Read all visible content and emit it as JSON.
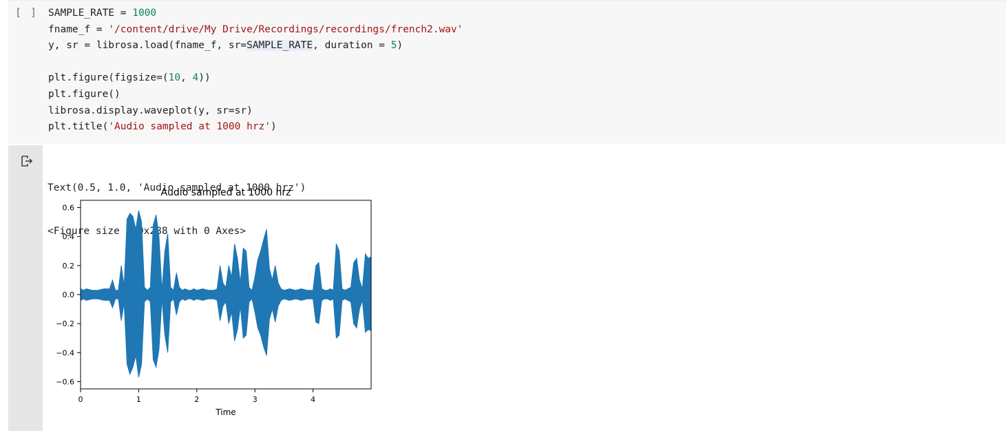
{
  "code_cell": {
    "run_indicator": "[ ]",
    "lines": [
      [
        {
          "t": "SAMPLE_RATE = "
        },
        {
          "t": "1000",
          "c": "num"
        }
      ],
      [
        {
          "t": "fname_f = "
        },
        {
          "t": "'/content/drive/My Drive/Recordings/recordings/french2.wav'",
          "c": "str"
        }
      ],
      [
        {
          "t": "y, sr = librosa.load(fname_f, sr="
        },
        {
          "t": "SAMPLE_RATE",
          "c": "hl"
        },
        {
          "t": ", duration = "
        },
        {
          "t": "5",
          "c": "num"
        },
        {
          "t": ")"
        }
      ],
      [
        {
          "t": ""
        }
      ],
      [
        {
          "t": "plt.figure(figsize=("
        },
        {
          "t": "10",
          "c": "num"
        },
        {
          "t": ", "
        },
        {
          "t": "4",
          "c": "num"
        },
        {
          "t": "))"
        }
      ],
      [
        {
          "t": "plt.figure()"
        }
      ],
      [
        {
          "t": "librosa.display.waveplot(y, sr=sr)"
        }
      ],
      [
        {
          "t": "plt.title("
        },
        {
          "t": "'Audio sampled at 1000 hrz'",
          "c": "str"
        },
        {
          "t": ")"
        }
      ]
    ]
  },
  "output": {
    "icon": "output-redirect-icon",
    "text_lines": [
      "Text(0.5, 1.0, 'Audio sampled at 1000 hrz')",
      "<Figure size 720x288 with 0 Axes>"
    ]
  },
  "chart_data": {
    "type": "area",
    "title": "Audio sampled at 1000 hrz",
    "xlabel": "Time",
    "ylabel": "",
    "xlim": [
      0,
      5
    ],
    "ylim": [
      -0.65,
      0.65
    ],
    "xticks": [
      0,
      1,
      2,
      3,
      4
    ],
    "yticks": [
      0.6,
      0.4,
      0.2,
      0.0,
      -0.2,
      -0.4,
      -0.6
    ],
    "ytick_labels": [
      "0.6",
      "0.4",
      "0.2",
      "0.0",
      "−0.2",
      "−0.4",
      "−0.6"
    ],
    "grid": false,
    "color": "#1f77b4",
    "series": [
      {
        "x": [
          0.0,
          0.05,
          0.1,
          0.2,
          0.3,
          0.4,
          0.5,
          0.55,
          0.6,
          0.65,
          0.7,
          0.75,
          0.8,
          0.85,
          0.9,
          0.95,
          1.0,
          1.05,
          1.1,
          1.15,
          1.2,
          1.25,
          1.3,
          1.35,
          1.4,
          1.45,
          1.5,
          1.55,
          1.6,
          1.65,
          1.7,
          1.75,
          1.8,
          1.85,
          1.9,
          1.95,
          2.0,
          2.1,
          2.2,
          2.3,
          2.35,
          2.4,
          2.45,
          2.5,
          2.55,
          2.6,
          2.65,
          2.7,
          2.75,
          2.8,
          2.85,
          2.9,
          2.95,
          3.0,
          3.05,
          3.1,
          3.15,
          3.2,
          3.25,
          3.3,
          3.35,
          3.4,
          3.45,
          3.5,
          3.6,
          3.7,
          3.8,
          3.9,
          4.0,
          4.05,
          4.1,
          4.15,
          4.2,
          4.25,
          4.3,
          4.35,
          4.4,
          4.45,
          4.5,
          4.55,
          4.6,
          4.65,
          4.7,
          4.75,
          4.8,
          4.85,
          4.9,
          4.95,
          5.0
        ],
        "max": [
          0.04,
          0.03,
          0.04,
          0.03,
          0.03,
          0.04,
          0.04,
          0.1,
          0.03,
          0.03,
          0.2,
          0.06,
          0.52,
          0.56,
          0.54,
          0.45,
          0.58,
          0.5,
          0.05,
          0.03,
          0.05,
          0.48,
          0.55,
          0.4,
          0.03,
          0.3,
          0.42,
          0.05,
          0.03,
          0.15,
          0.05,
          0.03,
          0.04,
          0.03,
          0.03,
          0.04,
          0.03,
          0.04,
          0.03,
          0.03,
          0.04,
          0.2,
          0.08,
          0.05,
          0.2,
          0.12,
          0.35,
          0.25,
          0.08,
          0.32,
          0.3,
          0.05,
          0.03,
          0.12,
          0.24,
          0.3,
          0.38,
          0.45,
          0.18,
          0.1,
          0.2,
          0.08,
          0.04,
          0.03,
          0.04,
          0.03,
          0.04,
          0.03,
          0.03,
          0.2,
          0.22,
          0.04,
          0.03,
          0.03,
          0.04,
          0.03,
          0.35,
          0.3,
          0.04,
          0.03,
          0.04,
          0.05,
          0.22,
          0.25,
          0.1,
          0.04,
          0.28,
          0.25,
          0.26
        ],
        "min": [
          -0.04,
          -0.03,
          -0.04,
          -0.03,
          -0.03,
          -0.04,
          -0.04,
          -0.09,
          -0.03,
          -0.03,
          -0.18,
          -0.06,
          -0.48,
          -0.55,
          -0.5,
          -0.42,
          -0.57,
          -0.48,
          -0.05,
          -0.03,
          -0.05,
          -0.45,
          -0.5,
          -0.38,
          -0.03,
          -0.28,
          -0.4,
          -0.05,
          -0.03,
          -0.14,
          -0.05,
          -0.03,
          -0.04,
          -0.03,
          -0.03,
          -0.04,
          -0.03,
          -0.04,
          -0.03,
          -0.03,
          -0.04,
          -0.18,
          -0.08,
          -0.05,
          -0.2,
          -0.12,
          -0.32,
          -0.24,
          -0.08,
          -0.3,
          -0.28,
          -0.05,
          -0.03,
          -0.12,
          -0.23,
          -0.28,
          -0.36,
          -0.42,
          -0.17,
          -0.1,
          -0.19,
          -0.08,
          -0.04,
          -0.03,
          -0.04,
          -0.03,
          -0.04,
          -0.03,
          -0.03,
          -0.19,
          -0.2,
          -0.04,
          -0.03,
          -0.03,
          -0.04,
          -0.03,
          -0.3,
          -0.28,
          -0.04,
          -0.03,
          -0.04,
          -0.05,
          -0.2,
          -0.23,
          -0.1,
          -0.04,
          -0.26,
          -0.24,
          -0.25
        ]
      }
    ]
  }
}
